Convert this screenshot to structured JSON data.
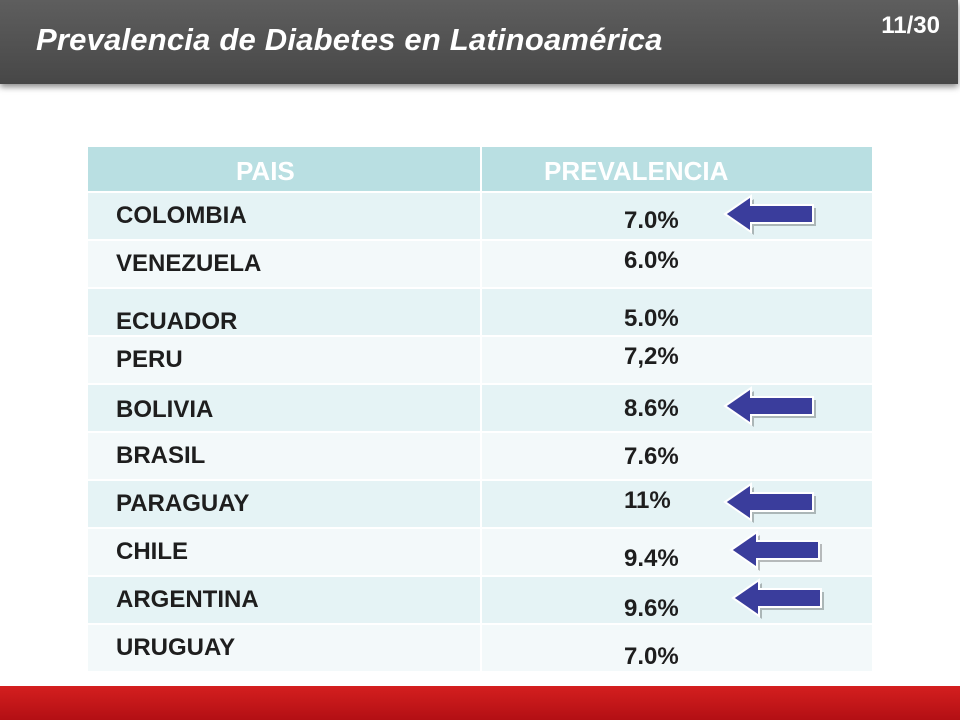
{
  "header": {
    "title": "Prevalencia de Diabetes en Latinoamérica",
    "page": "11/30"
  },
  "table": {
    "columns": [
      "PAIS",
      "PREVALENCIA"
    ],
    "rows": [
      {
        "country": "COLOMBIA",
        "value": "7.0%",
        "arrow": true
      },
      {
        "country": "VENEZUELA",
        "value": "6.0%",
        "arrow": false
      },
      {
        "country": "ECUADOR",
        "value": "5.0%",
        "arrow": false
      },
      {
        "country": "PERU",
        "value": "7,2%",
        "arrow": false
      },
      {
        "country": "BOLIVIA",
        "value": "8.6%",
        "arrow": true
      },
      {
        "country": "BRASIL",
        "value": "7.6%",
        "arrow": false
      },
      {
        "country": "PARAGUAY",
        "value": "11%",
        "arrow": true
      },
      {
        "country": "CHILE",
        "value": "9.4%",
        "arrow": true
      },
      {
        "country": "ARGENTINA",
        "value": "9.6%",
        "arrow": true
      },
      {
        "country": "URUGUAY",
        "value": "7.0%",
        "arrow": false
      }
    ]
  },
  "colors": {
    "arrow": "#3a3d9c",
    "header_row": "#b9dfe2",
    "title_bar": "#4f4f4f",
    "bottom_bar": "#c4161c"
  }
}
